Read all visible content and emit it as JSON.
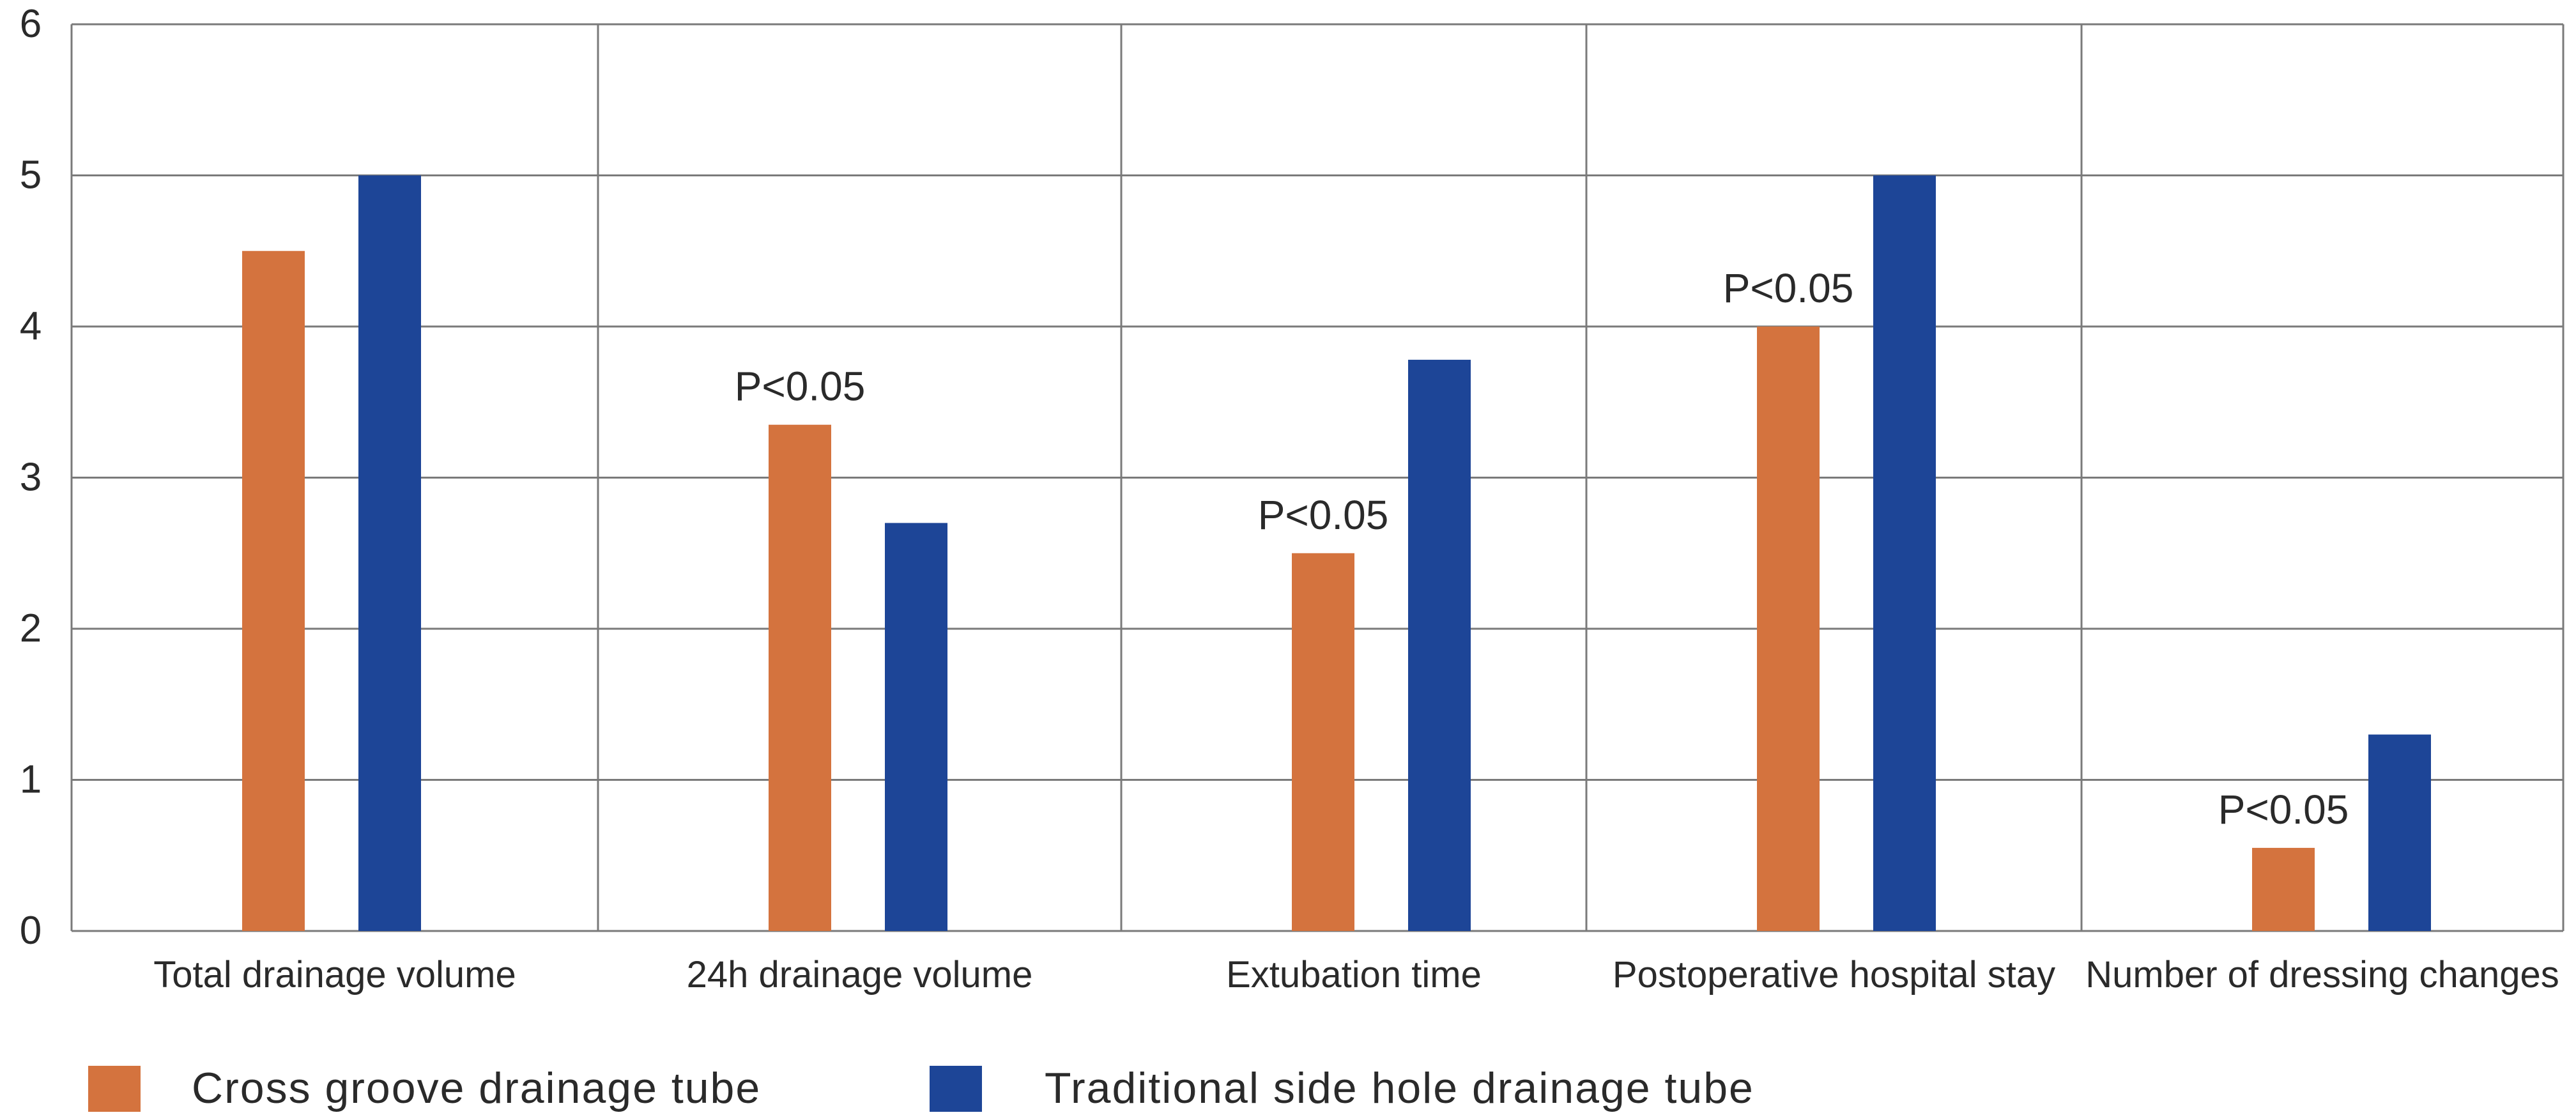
{
  "chart_data": {
    "type": "bar",
    "categories": [
      "Total drainage volume",
      "24h drainage volume",
      "Extubation time",
      "Postoperative hospital stay",
      "Number of dressing changes"
    ],
    "series": [
      {
        "name": "Cross groove drainage tube",
        "color": "#D4733E",
        "values": [
          4.5,
          3.35,
          2.5,
          4.0,
          0.55
        ]
      },
      {
        "name": "Traditional side hole drainage tube",
        "color": "#1D4597",
        "values": [
          5.0,
          2.7,
          3.78,
          5.0,
          1.3
        ]
      }
    ],
    "annotations": [
      {
        "category_index": 1,
        "text": "P<0.05"
      },
      {
        "category_index": 2,
        "text": "P<0.05"
      },
      {
        "category_index": 3,
        "text": "P<0.05"
      },
      {
        "category_index": 4,
        "text": "P<0.05"
      }
    ],
    "title": "",
    "xlabel": "",
    "ylabel": "",
    "ylim": [
      0,
      6
    ],
    "yticks": [
      0,
      1,
      2,
      3,
      4,
      5,
      6
    ],
    "grid": true,
    "legend_position": "bottom-left",
    "colors": {
      "grid": "#7a7a7a",
      "text": "#2a2a2a"
    }
  }
}
